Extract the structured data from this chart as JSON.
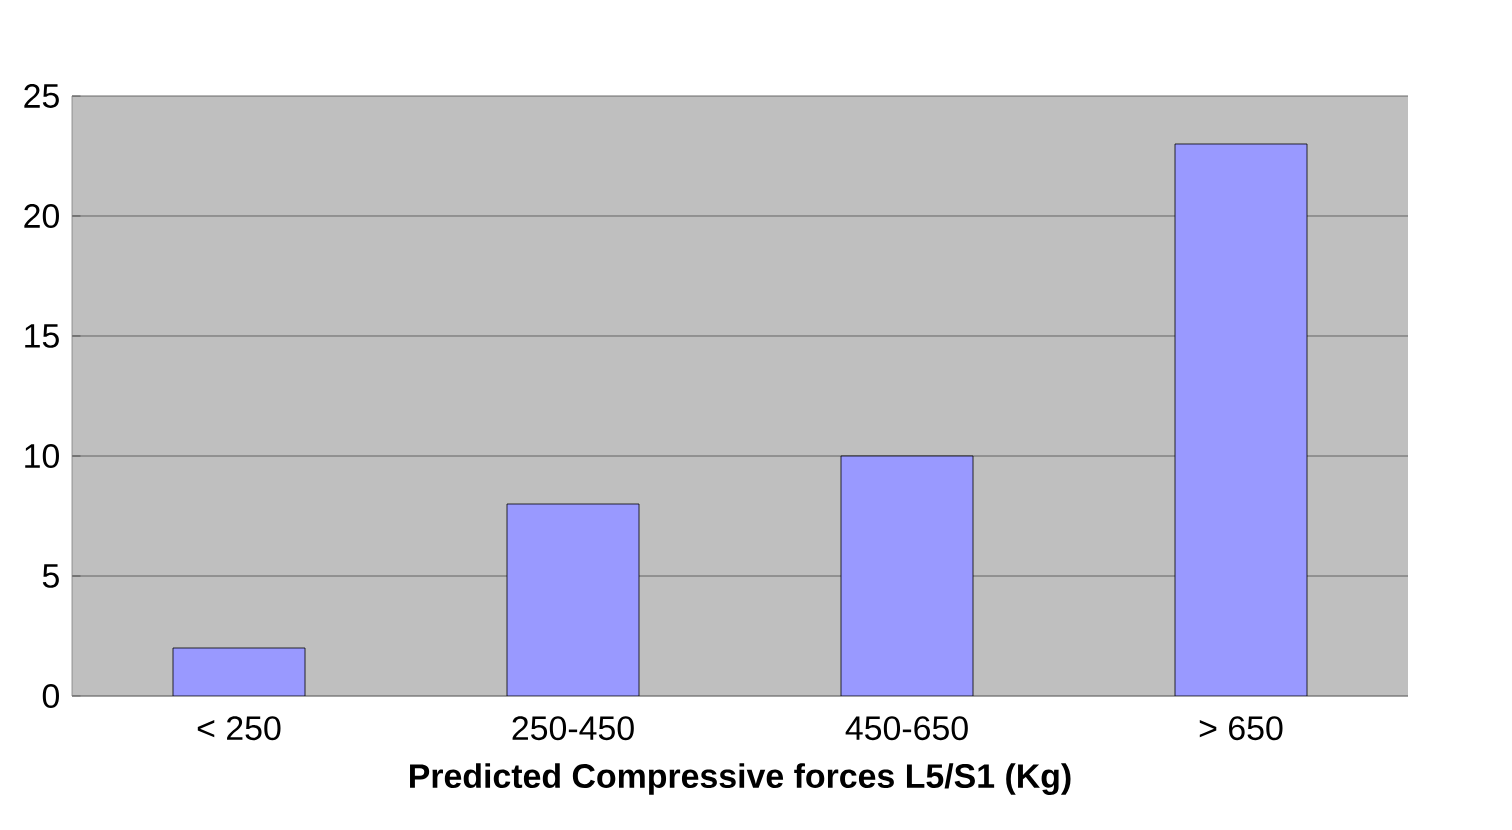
{
  "chart_data": {
    "type": "bar",
    "xlabel": "Predicted Compressive forces L5/S1 (Kg)",
    "categories": [
      "< 250",
      "250-450",
      "450-650",
      "> 650"
    ],
    "values": [
      2,
      8,
      10,
      23
    ],
    "color": "#9999ff",
    "ylim": [
      0,
      25
    ],
    "yticks": [
      0,
      5,
      10,
      15,
      20,
      25
    ],
    "grid": "y"
  }
}
